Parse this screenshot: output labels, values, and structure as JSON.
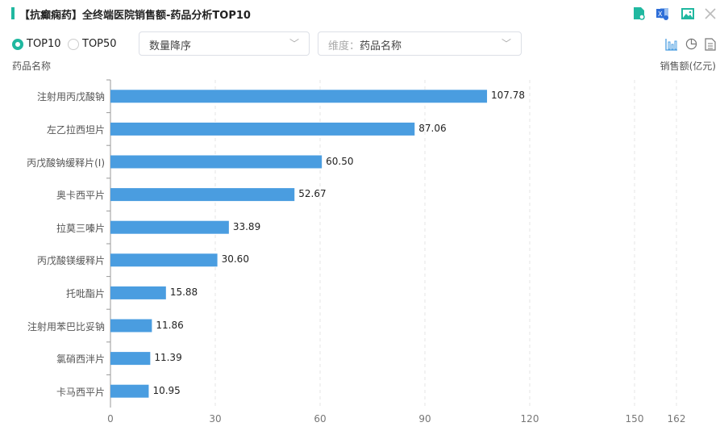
{
  "header": {
    "title": "【抗癫痫药】全终端医院销售额-药品分析TOP10",
    "icons": [
      "file-search-icon",
      "excel-export-icon",
      "image-export-icon",
      "close-icon"
    ]
  },
  "controls": {
    "radio": [
      {
        "label": "TOP10",
        "checked": true
      },
      {
        "label": "TOP50",
        "checked": false
      }
    ],
    "sort_select": "数量降序",
    "dimension_label": "维度：",
    "dimension_value": "药品名称",
    "chart_type_icons": [
      "bar-chart-icon",
      "pie-chart-icon",
      "table-icon"
    ]
  },
  "accent": "#20b8a0",
  "bar_color": "#4a9de0",
  "chart_data": {
    "type": "bar",
    "orientation": "horizontal",
    "ylabel": "药品名称",
    "xlabel": "销售额(亿元)",
    "categories": [
      "注射用丙戊酸钠",
      "左乙拉西坦片",
      "丙戊酸钠缓释片(Ⅰ)",
      "奥卡西平片",
      "拉莫三嗪片",
      "丙戊酸镁缓释片",
      "托吡酯片",
      "注射用苯巴比妥钠",
      "氯硝西泮片",
      "卡马西平片"
    ],
    "values": [
      107.78,
      87.06,
      60.5,
      52.67,
      33.89,
      30.6,
      15.88,
      11.86,
      11.39,
      10.95
    ],
    "value_labels": [
      "107.78",
      "87.06",
      "60.50",
      "52.67",
      "33.89",
      "30.60",
      "15.88",
      "11.86",
      "11.39",
      "10.95"
    ],
    "xticks": [
      "0",
      "30",
      "60",
      "90",
      "120",
      "150",
      "162"
    ],
    "xlim": [
      0,
      162
    ],
    "grid": true
  }
}
